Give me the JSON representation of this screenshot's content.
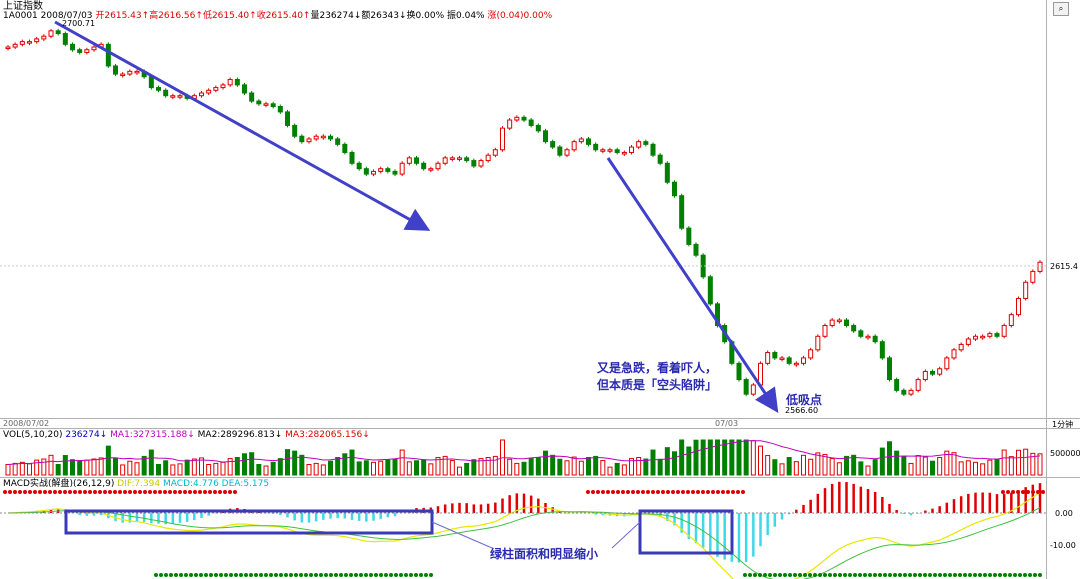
{
  "header": {
    "title": "上证指数",
    "code_date": "1A0001  2008/07/03",
    "open": "开2615.43↑",
    "high": "高2616.56↑",
    "low": "低2615.40↑",
    "close": "收2615.40↑",
    "volume": "量236274↓",
    "amount": "额26343↓",
    "turnover": "换0.00%",
    "amplitude": "振0.04%",
    "change": "涨(0.04)0.00%"
  },
  "price_axis": {
    "last_price_label": "2615.4"
  },
  "timeline": {
    "left_date": "2008/07/02",
    "mid_date": "07/03",
    "period": "1分钟"
  },
  "volume_panel": {
    "label": "VOL(5,10,20)",
    "vol": "236274↓",
    "ma1": "MA1:327315.188↓",
    "ma2": "MA2:289296.813↓",
    "ma3": "MA3:282065.156↓",
    "axis_label": "500000"
  },
  "macd_panel": {
    "label": "MACD实战(解盘)(26,12,9)",
    "diff": "DIF:7.394",
    "macd": "MACD:4.776",
    "dea": "DEA:5.175",
    "axis_zero": "0.00",
    "axis_neg": "-10.00"
  },
  "annotations": {
    "high_price": "2700.71",
    "low_price": "2566.60",
    "text1_line1": "又是急跌，看着吓人，",
    "text1_line2": "但本质是「空头陷阱」",
    "low_buy": "低吸点",
    "green_bars_note": "绿柱面积和明显缩小"
  },
  "colors": {
    "up": "#e00000",
    "down": "#008000",
    "arrow": "#4040c8",
    "macd_pos": "#e00000",
    "macd_neg": "#40d8e8"
  },
  "chart_data": {
    "type": "candlestick",
    "title": "上证指数",
    "ylim": [
      2560,
      2705
    ],
    "annotated_high": 2700.71,
    "annotated_low": 2566.6,
    "last_close": 2615.4,
    "close_series": [
      2695,
      2696,
      2697,
      2697,
      2698,
      2699,
      2701,
      2700,
      2696,
      2694,
      2693,
      2694,
      2695,
      2696,
      2688,
      2685,
      2685,
      2686,
      2686,
      2684,
      2680,
      2679,
      2677,
      2677,
      2677,
      2676,
      2677,
      2678,
      2679,
      2680,
      2681,
      2683,
      2681,
      2678,
      2675,
      2674,
      2674,
      2673,
      2671,
      2666,
      2662,
      2660,
      2661,
      2662,
      2662,
      2661,
      2659,
      2656,
      2652,
      2650,
      2648,
      2649,
      2650,
      2649,
      2648,
      2652,
      2654,
      2652,
      2650,
      2650,
      2652,
      2654,
      2654,
      2654,
      2653,
      2651,
      2653,
      2655,
      2657,
      2665,
      2668,
      2669,
      2668,
      2666,
      2664,
      2660,
      2658,
      2655,
      2657,
      2660,
      2661,
      2659,
      2657,
      2657,
      2657,
      2656,
      2656,
      2658,
      2660,
      2659,
      2655,
      2652,
      2645,
      2640,
      2628,
      2622,
      2618,
      2610,
      2600,
      2592,
      2586,
      2578,
      2572,
      2566.6,
      2570,
      2578,
      2582,
      2580,
      2580,
      2578,
      2578,
      2580,
      2583,
      2588,
      2592,
      2594,
      2594,
      2592,
      2590,
      2588,
      2588,
      2586,
      2580,
      2572,
      2568,
      2566.6,
      2568,
      2572,
      2575,
      2574,
      2576,
      2580,
      2583,
      2585,
      2587,
      2588,
      2588,
      2589,
      2588,
      2592,
      2596,
      2602,
      2608,
      2612,
      2615.4
    ],
    "volume_max": 800000,
    "macd_range": [
      -12,
      5
    ]
  }
}
